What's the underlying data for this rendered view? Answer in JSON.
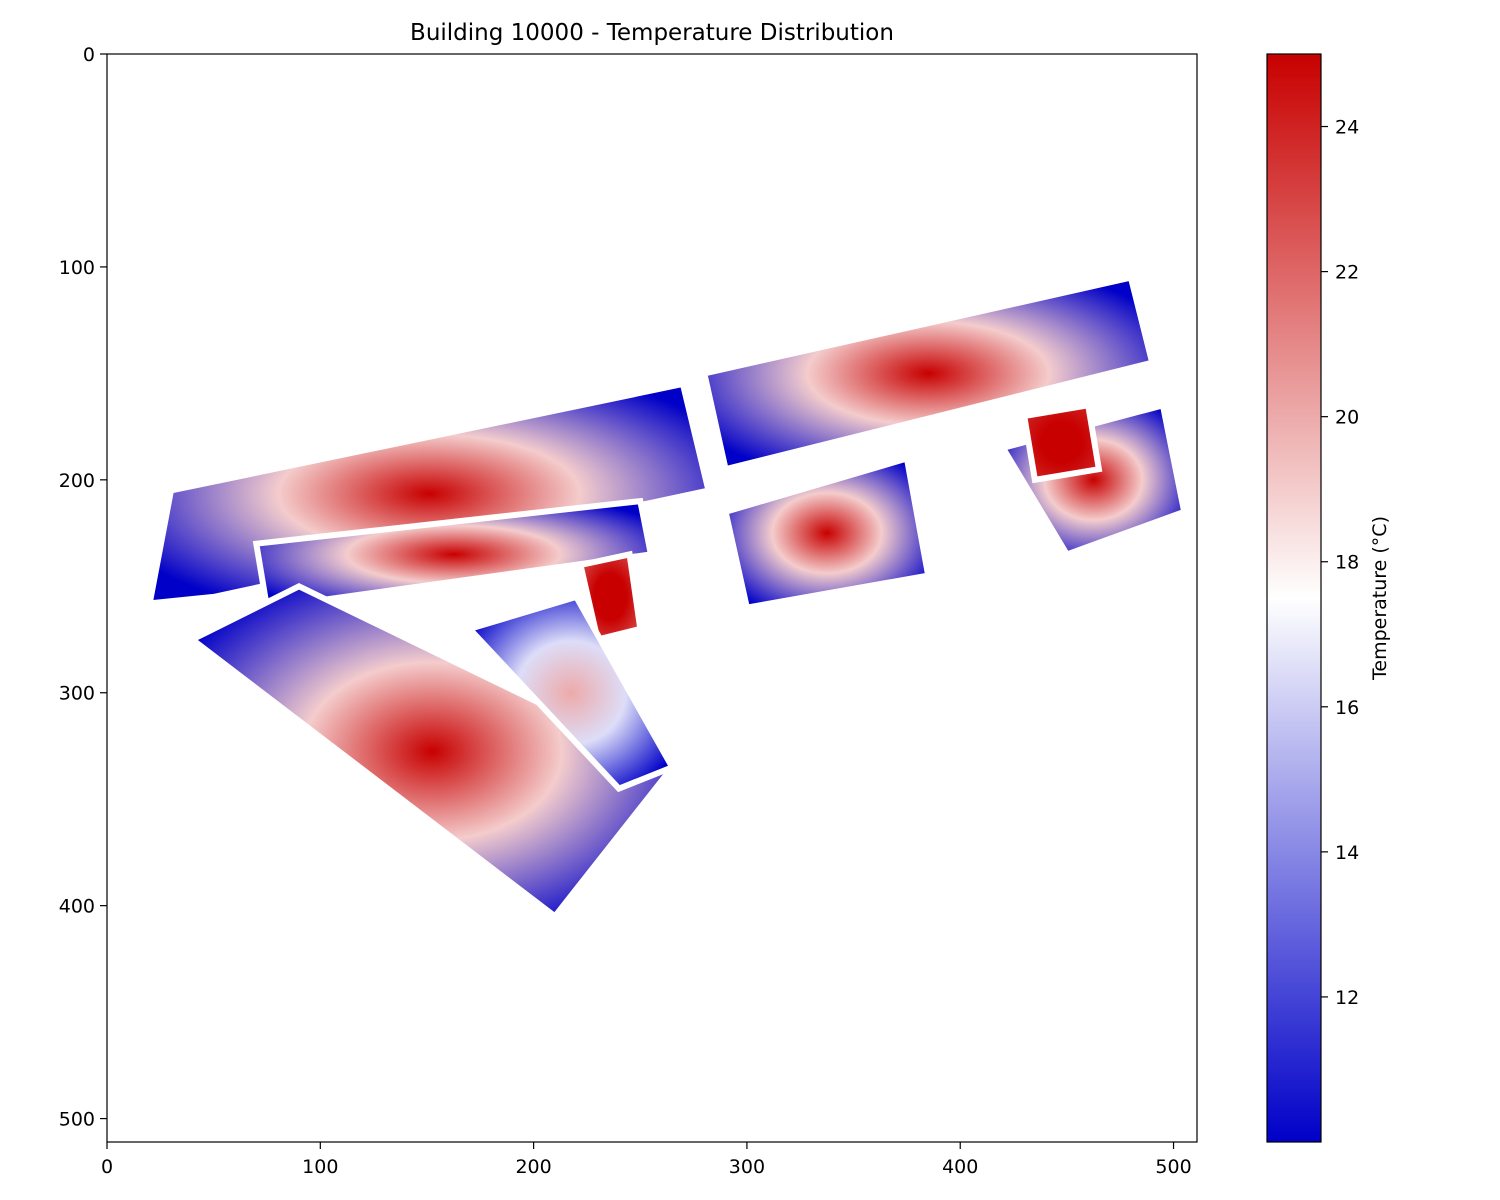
{
  "chart_data": {
    "type": "heatmap",
    "title": "Building 10000 - Temperature Distribution",
    "xlabel": "",
    "ylabel": "",
    "x_ticks": [
      0,
      100,
      200,
      300,
      400,
      500
    ],
    "y_ticks": [
      0,
      100,
      200,
      300,
      400,
      500
    ],
    "xlim": [
      0,
      511
    ],
    "ylim": [
      511,
      0
    ],
    "colorbar": {
      "label": "Temperature (°C)",
      "range": [
        10,
        25
      ],
      "ticks": [
        12,
        14,
        16,
        18,
        20,
        22,
        24
      ],
      "colormap": [
        "#0000c8",
        "#ffffff",
        "#c80000"
      ]
    },
    "grid": false,
    "rooms": [
      {
        "id": "north-wing-west",
        "points": [
          [
            30,
            205
          ],
          [
            270,
            155
          ],
          [
            282,
            205
          ],
          [
            50,
            255
          ],
          [
            20,
            258
          ]
        ],
        "min_temp": 10,
        "max_temp": 25
      },
      {
        "id": "north-wing-east",
        "points": [
          [
            280,
            150
          ],
          [
            480,
            105
          ],
          [
            490,
            145
          ],
          [
            290,
            195
          ]
        ],
        "min_temp": 10,
        "max_temp": 25
      },
      {
        "id": "east-block-middle",
        "points": [
          [
            290,
            215
          ],
          [
            375,
            190
          ],
          [
            385,
            245
          ],
          [
            300,
            260
          ]
        ],
        "min_temp": 10,
        "max_temp": 25
      },
      {
        "id": "east-block-right",
        "points": [
          [
            420,
            185
          ],
          [
            495,
            165
          ],
          [
            505,
            215
          ],
          [
            450,
            235
          ]
        ],
        "min_temp": 10,
        "max_temp": 25
      },
      {
        "id": "east-hot-room",
        "points": [
          [
            430,
            170
          ],
          [
            460,
            165
          ],
          [
            465,
            195
          ],
          [
            435,
            200
          ]
        ],
        "min_temp": 24,
        "max_temp": 25
      },
      {
        "id": "central-corridor",
        "points": [
          [
            70,
            230
          ],
          [
            250,
            210
          ],
          [
            255,
            235
          ],
          [
            75,
            260
          ]
        ],
        "min_temp": 10,
        "max_temp": 25
      },
      {
        "id": "central-hot-room",
        "points": [
          [
            222,
            240
          ],
          [
            245,
            235
          ],
          [
            250,
            270
          ],
          [
            230,
            275
          ]
        ],
        "min_temp": 23,
        "max_temp": 25
      },
      {
        "id": "southwest-wing",
        "points": [
          [
            40,
            275
          ],
          [
            90,
            250
          ],
          [
            265,
            335
          ],
          [
            210,
            405
          ]
        ],
        "min_temp": 10,
        "max_temp": 25
      },
      {
        "id": "southwest-inner",
        "points": [
          [
            170,
            270
          ],
          [
            220,
            255
          ],
          [
            265,
            335
          ],
          [
            240,
            345
          ]
        ],
        "min_temp": 10,
        "max_temp": 20
      }
    ]
  }
}
